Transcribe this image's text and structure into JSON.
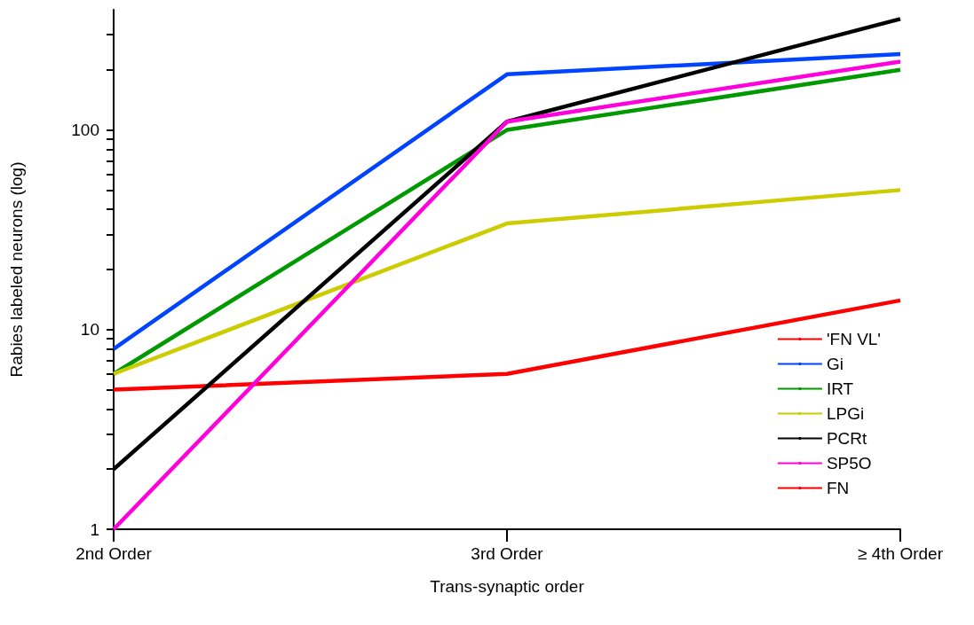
{
  "chart_data": {
    "type": "line",
    "xlabel": "Trans-synaptic order",
    "ylabel": "Rabies labeled neurons (log)",
    "categories": [
      "2nd Order",
      "3rd Order",
      "≥ 4th Order"
    ],
    "series": [
      {
        "name": "'FN VL'",
        "color": "#ff0000",
        "values": [
          5,
          6,
          14
        ]
      },
      {
        "name": "Gi",
        "color": "#0044ff",
        "values": [
          8,
          190,
          240
        ]
      },
      {
        "name": "IRT",
        "color": "#009900",
        "values": [
          6,
          100,
          200
        ]
      },
      {
        "name": "LPGi",
        "color": "#cccc00",
        "values": [
          6,
          34,
          50
        ]
      },
      {
        "name": "PCRt",
        "color": "#000000",
        "values": [
          2,
          110,
          360
        ]
      },
      {
        "name": "SP5O",
        "color": "#ff00dd",
        "values": [
          1,
          110,
          220
        ]
      },
      {
        "name": "FN",
        "color": "#ff0000",
        "values": [
          null,
          null,
          null
        ]
      }
    ],
    "log": "y",
    "ylim": [
      1,
      400
    ],
    "yticks": [
      1,
      {
        "value": 2,
        "label": null
      },
      {
        "value": 3,
        "label": null
      },
      {
        "value": 4,
        "label": null
      },
      {
        "value": 5,
        "label": null
      },
      {
        "value": 6,
        "label": null
      },
      {
        "value": 7,
        "label": null
      },
      {
        "value": 8,
        "label": null
      },
      {
        "value": 9,
        "label": null
      },
      10,
      {
        "value": 20,
        "label": null
      },
      {
        "value": 30,
        "label": null
      },
      {
        "value": 40,
        "label": null
      },
      {
        "value": 50,
        "label": null
      },
      {
        "value": 60,
        "label": null
      },
      {
        "value": 70,
        "label": null
      },
      {
        "value": 80,
        "label": null
      },
      {
        "value": 90,
        "label": null
      },
      100,
      {
        "value": 200,
        "label": null
      },
      {
        "value": 300,
        "label": null
      }
    ],
    "grid": false,
    "legend": "bottom right",
    "marker": "none",
    "line_style": "solid"
  }
}
